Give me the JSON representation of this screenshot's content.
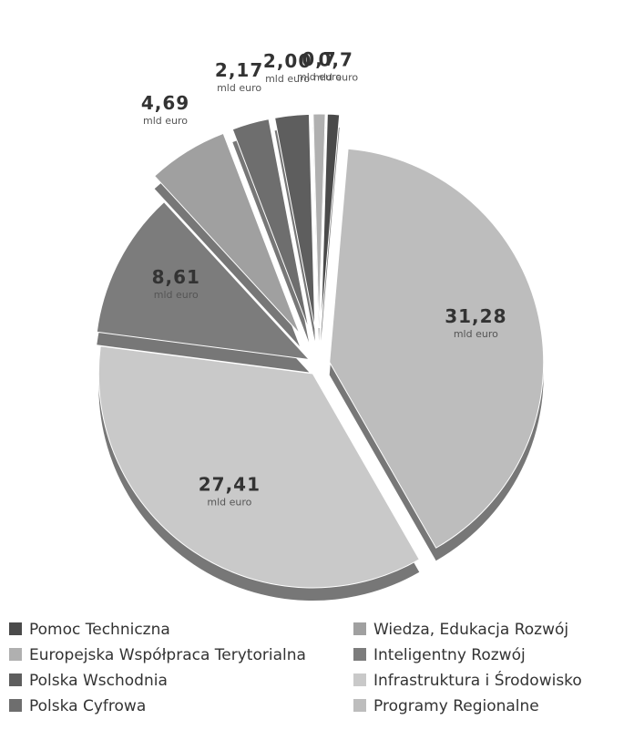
{
  "chart_data": {
    "type": "pie",
    "categories": [
      "Pomoc Techniczna",
      "Europejska Współpraca Terytorialna",
      "Polska Wschodnia",
      "Polska Cyfrowa",
      "Wiedza, Edukacja Rozwój",
      "Inteligentny Rozwój",
      "Infrastruktura i Środowisko",
      "Programy Regionalne"
    ],
    "values": [
      0.7,
      0.7,
      2.0,
      2.17,
      4.69,
      8.61,
      27.41,
      31.28
    ],
    "value_labels": [
      "0,7",
      "0,7",
      "2,00",
      "2,17",
      "4,69",
      "8,61",
      "27,41",
      "31,28"
    ],
    "unit": "mld euro",
    "colors": [
      "#4a4a4a",
      "#b0b0b0",
      "#5e5e5e",
      "#6e6e6e",
      "#a0a0a0",
      "#7c7c7c",
      "#c9c9c9",
      "#bdbdbd"
    ]
  }
}
